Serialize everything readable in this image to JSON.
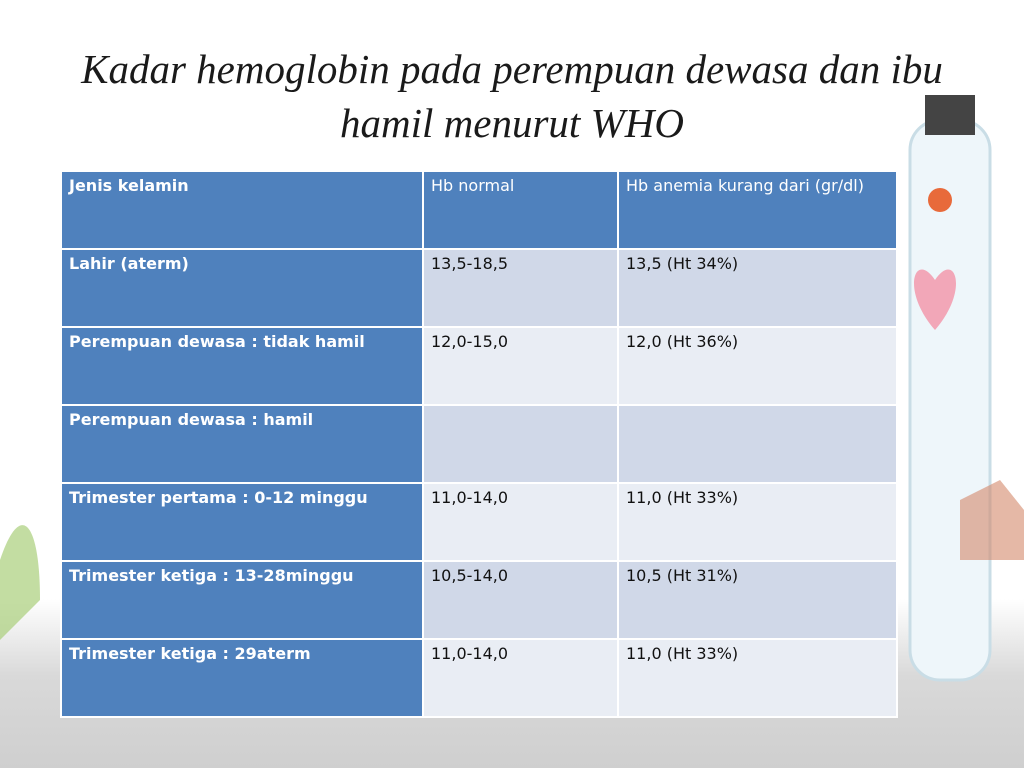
{
  "title": "Kadar hemoglobin pada perempuan dewasa dan ibu hamil menurut WHO",
  "table": {
    "header": [
      "Jenis kelamin",
      "Hb normal",
      "Hb anemia kurang dari (gr/dl)"
    ],
    "rows": [
      [
        "Lahir (aterm)",
        "13,5-18,5",
        "13,5 (Ht 34%)"
      ],
      [
        "Perempuan dewasa : tidak hamil",
        "12,0-15,0",
        "12,0 (Ht 36%)"
      ],
      [
        "Perempuan dewasa : hamil",
        "",
        ""
      ],
      [
        "Trimester pertama  : 0-12 minggu",
        "11,0-14,0",
        "11,0 (Ht 33%)"
      ],
      [
        "Trimester ketiga : 13-28minggu",
        "10,5-14,0",
        "10,5 (Ht 31%)"
      ],
      [
        "Trimester ketiga : 29aterm",
        "11,0-14,0",
        "11,0 (Ht 33%)"
      ]
    ]
  }
}
